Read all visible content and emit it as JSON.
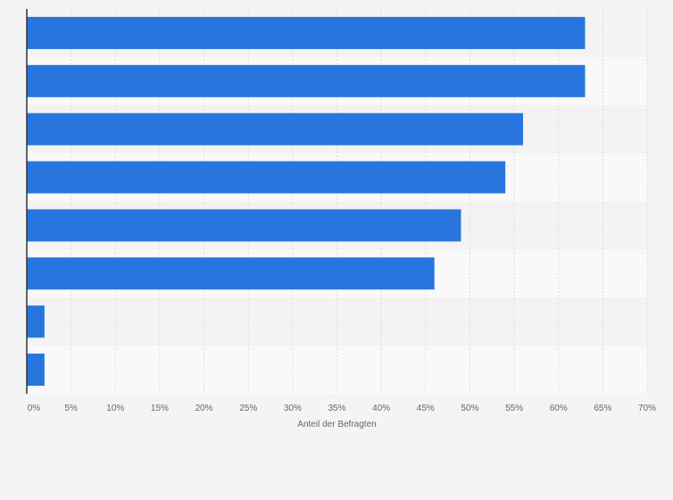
{
  "chart_data": {
    "type": "bar",
    "orientation": "horizontal",
    "categories": [
      "",
      "",
      "",
      "",
      "",
      "",
      "",
      ""
    ],
    "values": [
      63,
      63,
      56,
      54,
      49,
      46,
      2,
      2
    ],
    "xlabel": "Anteil der Befragten",
    "ylabel": "",
    "xlim": [
      0,
      70
    ],
    "xticks": [
      "0%",
      "5%",
      "10%",
      "15%",
      "20%",
      "25%",
      "30%",
      "35%",
      "40%",
      "45%",
      "50%",
      "55%",
      "60%",
      "65%",
      "70%"
    ],
    "grid": true,
    "legend": "none",
    "colors": {
      "bar": "#2876dd",
      "band_light": "#f9f9f9",
      "band_dark": "#f3f3f3",
      "gridline": "#dddddd",
      "axis": "#333333"
    }
  }
}
